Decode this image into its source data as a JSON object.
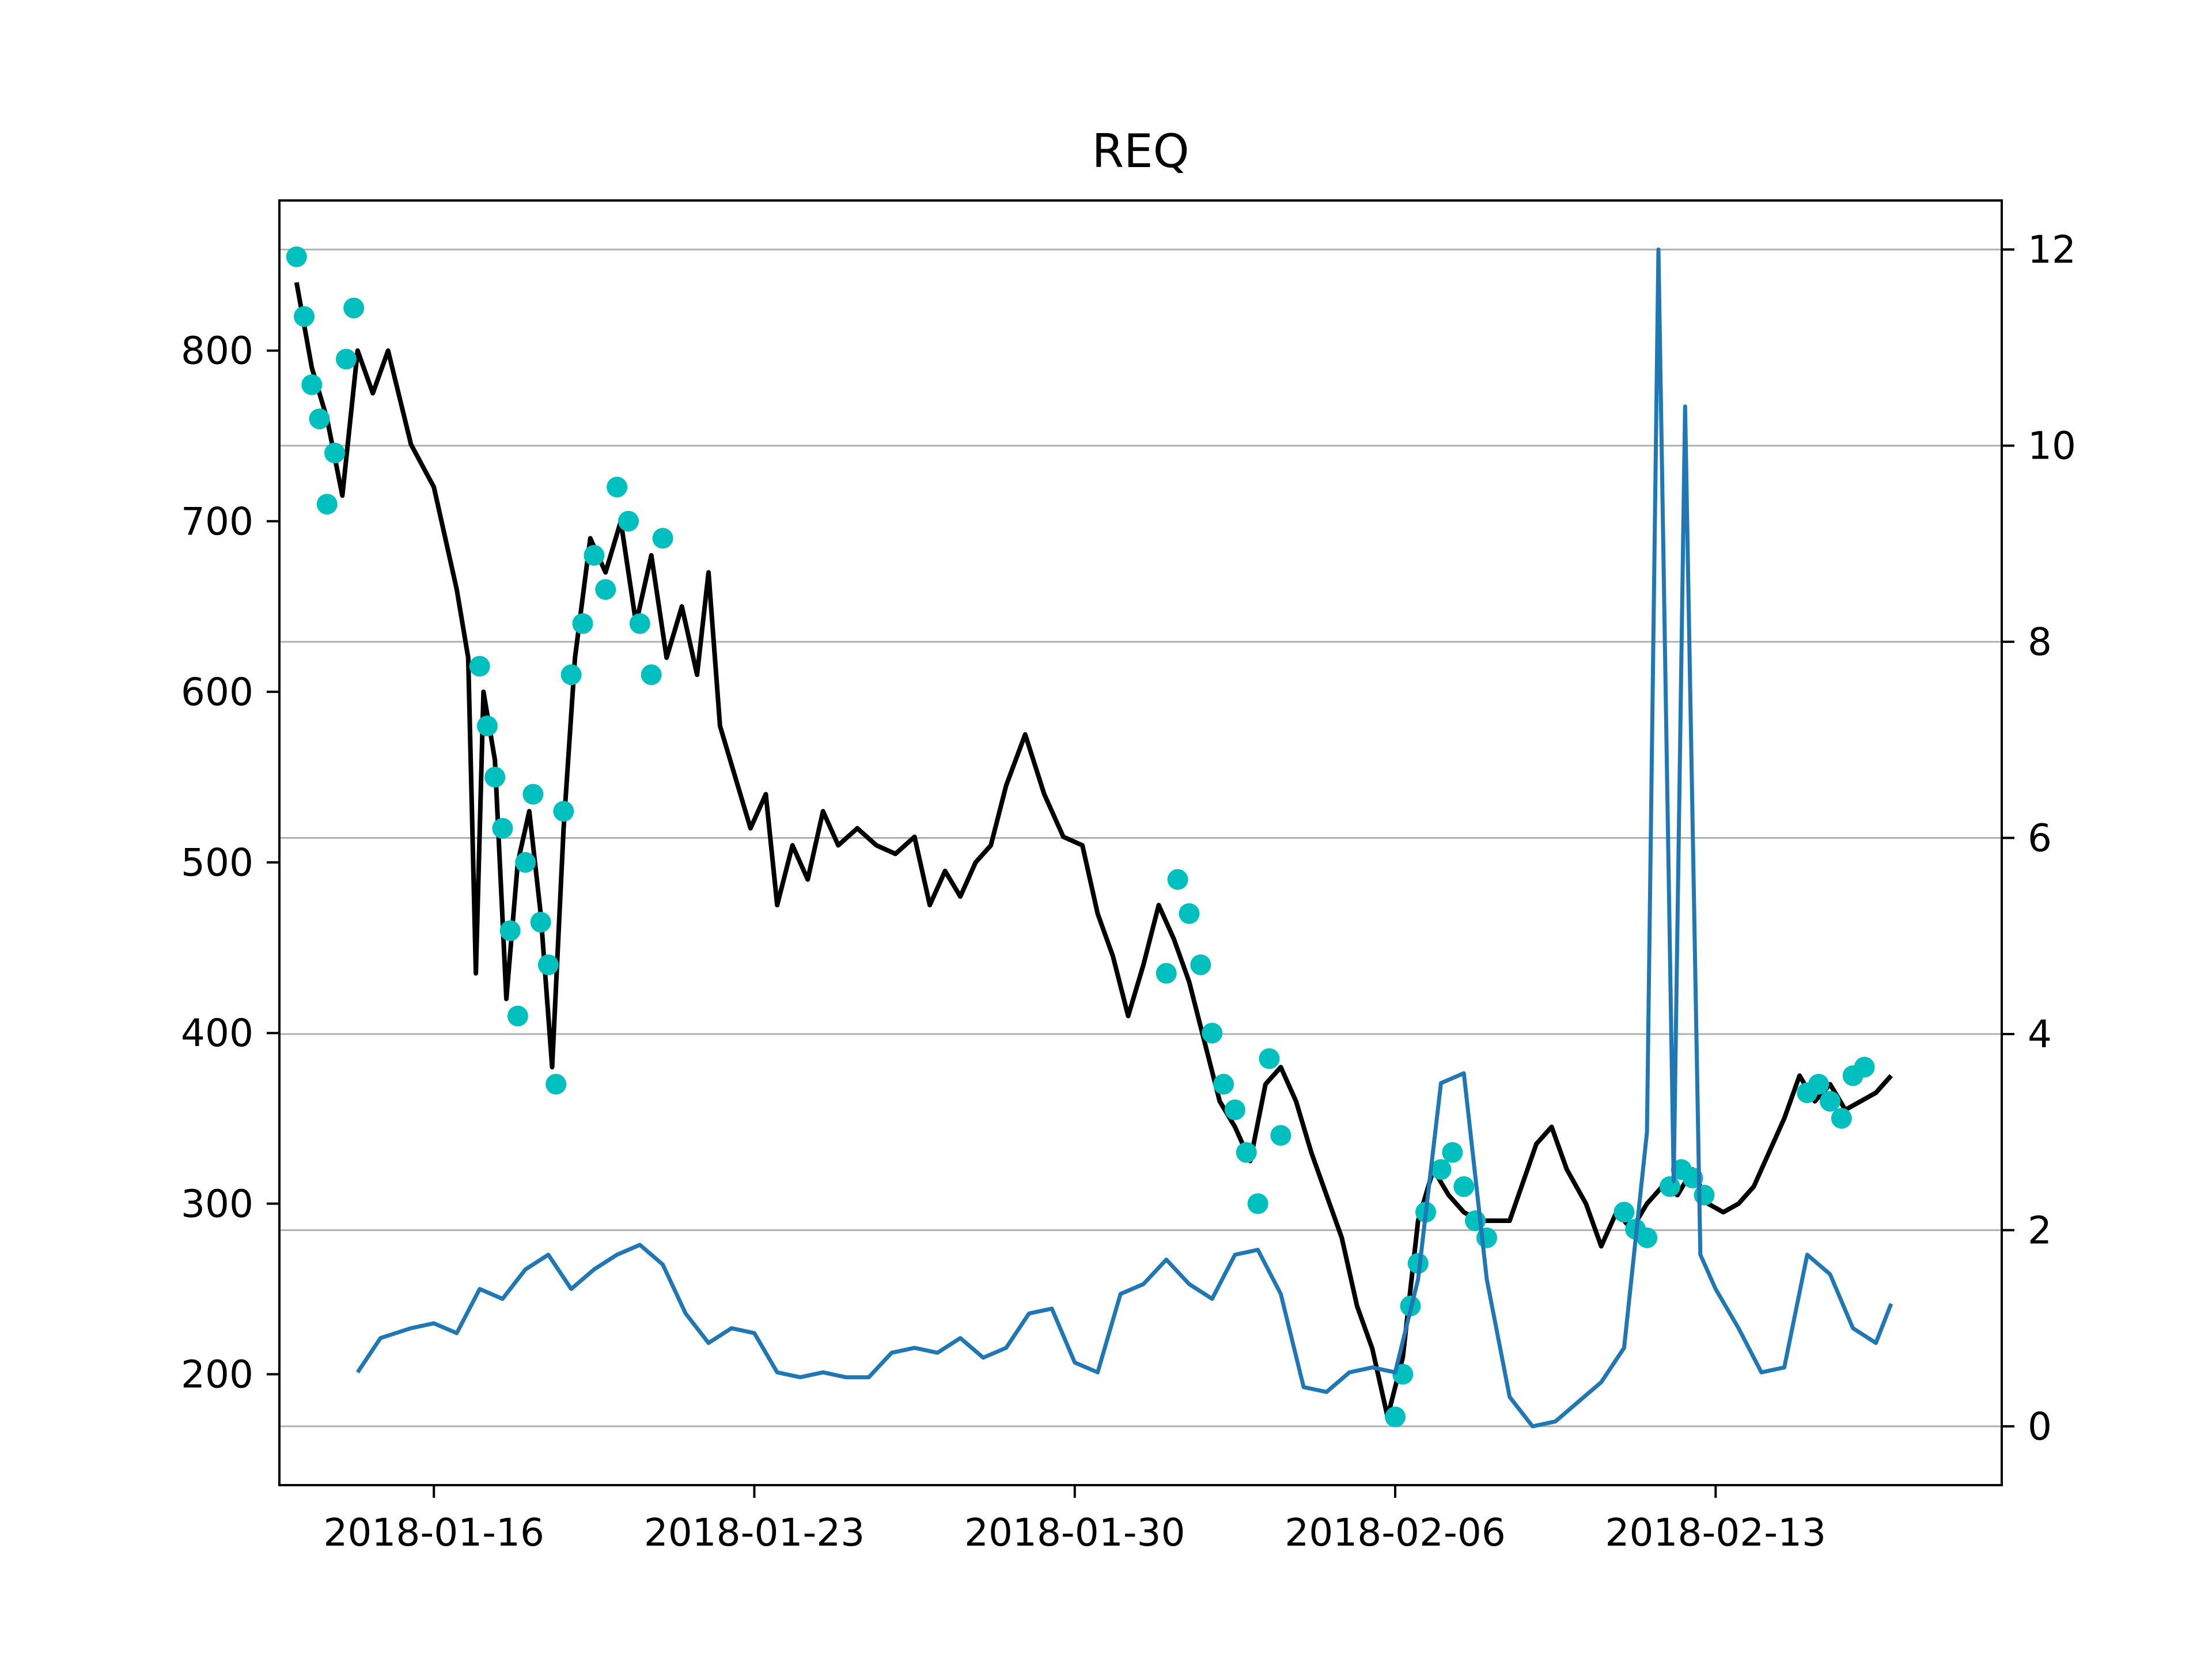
{
  "chart_data": {
    "type": "line",
    "title": "REQ",
    "xlabel": "",
    "ylabel": "",
    "y2label": "",
    "grid": "horizontal, right axis",
    "legend": "none",
    "x_ticks": [
      "2018-01-16",
      "2018-01-23",
      "2018-01-30",
      "2018-02-06",
      "2018-02-13"
    ],
    "y_ticks": [
      "200",
      "300",
      "400",
      "500",
      "600",
      "700",
      "800"
    ],
    "y2_ticks": [
      "0",
      "2",
      "4",
      "6",
      "8",
      "10",
      "12"
    ],
    "xlim": [
      "2018-01-12 15:00",
      "2018-02-19 06:00"
    ],
    "ylim": [
      135,
      888
    ],
    "y2lim": [
      -0.6,
      12.5
    ],
    "colors": {
      "price": "#000000",
      "markers": "#00bfbf",
      "indicator": "#1f77b4",
      "grid": "#b0b0b0"
    },
    "series": [
      {
        "axis": "left",
        "color": "#000000",
        "points": [
          [
            "2018-01-13 00:00",
            840
          ],
          [
            "2018-01-13 08:00",
            790
          ],
          [
            "2018-01-13 16:00",
            760
          ],
          [
            "2018-01-14 00:00",
            715
          ],
          [
            "2018-01-14 08:00",
            800
          ],
          [
            "2018-01-14 16:00",
            775
          ],
          [
            "2018-01-15 00:00",
            800
          ],
          [
            "2018-01-15 12:00",
            745
          ],
          [
            "2018-01-16 00:00",
            720
          ],
          [
            "2018-01-16 12:00",
            660
          ],
          [
            "2018-01-16 18:00",
            620
          ],
          [
            "2018-01-16 22:00",
            435
          ],
          [
            "2018-01-17 02:00",
            600
          ],
          [
            "2018-01-17 08:00",
            560
          ],
          [
            "2018-01-17 14:00",
            420
          ],
          [
            "2018-01-17 20:00",
            500
          ],
          [
            "2018-01-18 02:00",
            530
          ],
          [
            "2018-01-18 08:00",
            470
          ],
          [
            "2018-01-18 14:00",
            380
          ],
          [
            "2018-01-18 20:00",
            520
          ],
          [
            "2018-01-19 02:00",
            620
          ],
          [
            "2018-01-19 10:00",
            690
          ],
          [
            "2018-01-19 18:00",
            670
          ],
          [
            "2018-01-20 02:00",
            700
          ],
          [
            "2018-01-20 10:00",
            640
          ],
          [
            "2018-01-20 18:00",
            680
          ],
          [
            "2018-01-21 02:00",
            620
          ],
          [
            "2018-01-21 10:00",
            650
          ],
          [
            "2018-01-21 18:00",
            610
          ],
          [
            "2018-01-22 00:00",
            670
          ],
          [
            "2018-01-22 06:00",
            580
          ],
          [
            "2018-01-22 14:00",
            550
          ],
          [
            "2018-01-22 22:00",
            520
          ],
          [
            "2018-01-23 06:00",
            540
          ],
          [
            "2018-01-23 12:00",
            475
          ],
          [
            "2018-01-23 20:00",
            510
          ],
          [
            "2018-01-24 04:00",
            490
          ],
          [
            "2018-01-24 12:00",
            530
          ],
          [
            "2018-01-24 20:00",
            510
          ],
          [
            "2018-01-25 06:00",
            520
          ],
          [
            "2018-01-25 16:00",
            510
          ],
          [
            "2018-01-26 02:00",
            505
          ],
          [
            "2018-01-26 12:00",
            515
          ],
          [
            "2018-01-26 20:00",
            475
          ],
          [
            "2018-01-27 04:00",
            495
          ],
          [
            "2018-01-27 12:00",
            480
          ],
          [
            "2018-01-27 20:00",
            500
          ],
          [
            "2018-01-28 04:00",
            510
          ],
          [
            "2018-01-28 12:00",
            545
          ],
          [
            "2018-01-28 22:00",
            575
          ],
          [
            "2018-01-29 08:00",
            540
          ],
          [
            "2018-01-29 18:00",
            515
          ],
          [
            "2018-01-30 04:00",
            510
          ],
          [
            "2018-01-30 12:00",
            470
          ],
          [
            "2018-01-30 20:00",
            445
          ],
          [
            "2018-01-31 04:00",
            410
          ],
          [
            "2018-01-31 12:00",
            440
          ],
          [
            "2018-01-31 20:00",
            475
          ],
          [
            "2018-02-01 04:00",
            455
          ],
          [
            "2018-02-01 12:00",
            430
          ],
          [
            "2018-02-01 20:00",
            395
          ],
          [
            "2018-02-02 04:00",
            360
          ],
          [
            "2018-02-02 12:00",
            345
          ],
          [
            "2018-02-02 20:00",
            325
          ],
          [
            "2018-02-03 04:00",
            370
          ],
          [
            "2018-02-03 12:00",
            380
          ],
          [
            "2018-02-03 20:00",
            360
          ],
          [
            "2018-02-04 04:00",
            330
          ],
          [
            "2018-02-04 12:00",
            305
          ],
          [
            "2018-02-04 20:00",
            280
          ],
          [
            "2018-02-05 04:00",
            240
          ],
          [
            "2018-02-05 12:00",
            215
          ],
          [
            "2018-02-05 20:00",
            175
          ],
          [
            "2018-02-06 04:00",
            210
          ],
          [
            "2018-02-06 12:00",
            290
          ],
          [
            "2018-02-06 20:00",
            320
          ],
          [
            "2018-02-07 04:00",
            305
          ],
          [
            "2018-02-07 12:00",
            295
          ],
          [
            "2018-02-07 20:00",
            290
          ],
          [
            "2018-02-08 12:00",
            290
          ],
          [
            "2018-02-09 02:00",
            335
          ],
          [
            "2018-02-09 10:00",
            345
          ],
          [
            "2018-02-09 18:00",
            320
          ],
          [
            "2018-02-10 04:00",
            300
          ],
          [
            "2018-02-10 12:00",
            275
          ],
          [
            "2018-02-10 20:00",
            295
          ],
          [
            "2018-02-11 04:00",
            285
          ],
          [
            "2018-02-11 12:00",
            300
          ],
          [
            "2018-02-11 20:00",
            310
          ],
          [
            "2018-02-12 04:00",
            305
          ],
          [
            "2018-02-12 12:00",
            320
          ],
          [
            "2018-02-12 20:00",
            300
          ],
          [
            "2018-02-13 04:00",
            295
          ],
          [
            "2018-02-13 12:00",
            300
          ],
          [
            "2018-02-13 20:00",
            310
          ],
          [
            "2018-02-14 04:00",
            330
          ],
          [
            "2018-02-14 12:00",
            350
          ],
          [
            "2018-02-14 20:00",
            375
          ],
          [
            "2018-02-15 04:00",
            360
          ],
          [
            "2018-02-15 12:00",
            370
          ],
          [
            "2018-02-15 20:00",
            355
          ],
          [
            "2018-02-16 04:00",
            360
          ],
          [
            "2018-02-16 12:00",
            365
          ],
          [
            "2018-02-16 20:00",
            375
          ]
        ]
      },
      {
        "axis": "left",
        "color": "#00bfbf",
        "style": "markers",
        "points": [
          [
            "2018-01-13 00:00",
            855
          ],
          [
            "2018-01-13 04:00",
            820
          ],
          [
            "2018-01-13 08:00",
            780
          ],
          [
            "2018-01-13 12:00",
            760
          ],
          [
            "2018-01-13 16:00",
            710
          ],
          [
            "2018-01-13 20:00",
            740
          ],
          [
            "2018-01-14 02:00",
            795
          ],
          [
            "2018-01-14 06:00",
            825
          ],
          [
            "2018-01-17 00:00",
            615
          ],
          [
            "2018-01-17 04:00",
            580
          ],
          [
            "2018-01-17 08:00",
            550
          ],
          [
            "2018-01-17 12:00",
            520
          ],
          [
            "2018-01-17 16:00",
            460
          ],
          [
            "2018-01-17 20:00",
            410
          ],
          [
            "2018-01-18 00:00",
            500
          ],
          [
            "2018-01-18 04:00",
            540
          ],
          [
            "2018-01-18 08:00",
            465
          ],
          [
            "2018-01-18 12:00",
            440
          ],
          [
            "2018-01-18 16:00",
            370
          ],
          [
            "2018-01-18 20:00",
            530
          ],
          [
            "2018-01-19 00:00",
            610
          ],
          [
            "2018-01-19 06:00",
            640
          ],
          [
            "2018-01-19 12:00",
            680
          ],
          [
            "2018-01-19 18:00",
            660
          ],
          [
            "2018-01-20 00:00",
            720
          ],
          [
            "2018-01-20 06:00",
            700
          ],
          [
            "2018-01-20 12:00",
            640
          ],
          [
            "2018-01-20 18:00",
            610
          ],
          [
            "2018-01-21 00:00",
            690
          ],
          [
            "2018-02-01 00:00",
            435
          ],
          [
            "2018-02-01 06:00",
            490
          ],
          [
            "2018-02-01 12:00",
            470
          ],
          [
            "2018-02-01 18:00",
            440
          ],
          [
            "2018-02-02 00:00",
            400
          ],
          [
            "2018-02-02 06:00",
            370
          ],
          [
            "2018-02-02 12:00",
            355
          ],
          [
            "2018-02-02 18:00",
            330
          ],
          [
            "2018-02-03 00:00",
            300
          ],
          [
            "2018-02-03 06:00",
            385
          ],
          [
            "2018-02-03 12:00",
            340
          ],
          [
            "2018-02-06 00:00",
            175
          ],
          [
            "2018-02-06 04:00",
            200
          ],
          [
            "2018-02-06 08:00",
            240
          ],
          [
            "2018-02-06 12:00",
            265
          ],
          [
            "2018-02-06 16:00",
            295
          ],
          [
            "2018-02-07 00:00",
            320
          ],
          [
            "2018-02-07 06:00",
            330
          ],
          [
            "2018-02-07 12:00",
            310
          ],
          [
            "2018-02-07 18:00",
            290
          ],
          [
            "2018-02-08 00:00",
            280
          ],
          [
            "2018-02-11 00:00",
            295
          ],
          [
            "2018-02-11 06:00",
            285
          ],
          [
            "2018-02-11 12:00",
            280
          ],
          [
            "2018-02-12 00:00",
            310
          ],
          [
            "2018-02-12 06:00",
            320
          ],
          [
            "2018-02-12 12:00",
            315
          ],
          [
            "2018-02-12 18:00",
            305
          ],
          [
            "2018-02-15 00:00",
            365
          ],
          [
            "2018-02-15 06:00",
            370
          ],
          [
            "2018-02-15 12:00",
            360
          ],
          [
            "2018-02-15 18:00",
            350
          ],
          [
            "2018-02-16 00:00",
            375
          ],
          [
            "2018-02-16 06:00",
            380
          ]
        ]
      },
      {
        "axis": "right",
        "color": "#1f77b4",
        "points": [
          [
            "2018-01-14 08:00",
            0.55
          ],
          [
            "2018-01-14 20:00",
            0.9
          ],
          [
            "2018-01-15 12:00",
            1.0
          ],
          [
            "2018-01-16 00:00",
            1.05
          ],
          [
            "2018-01-16 12:00",
            0.95
          ],
          [
            "2018-01-17 00:00",
            1.4
          ],
          [
            "2018-01-17 12:00",
            1.3
          ],
          [
            "2018-01-18 00:00",
            1.6
          ],
          [
            "2018-01-18 12:00",
            1.75
          ],
          [
            "2018-01-19 00:00",
            1.4
          ],
          [
            "2018-01-19 12:00",
            1.6
          ],
          [
            "2018-01-20 00:00",
            1.75
          ],
          [
            "2018-01-20 12:00",
            1.85
          ],
          [
            "2018-01-21 00:00",
            1.65
          ],
          [
            "2018-01-21 12:00",
            1.15
          ],
          [
            "2018-01-22 00:00",
            0.85
          ],
          [
            "2018-01-22 12:00",
            1.0
          ],
          [
            "2018-01-23 00:00",
            0.95
          ],
          [
            "2018-01-23 12:00",
            0.55
          ],
          [
            "2018-01-24 00:00",
            0.5
          ],
          [
            "2018-01-24 12:00",
            0.55
          ],
          [
            "2018-01-25 00:00",
            0.5
          ],
          [
            "2018-01-25 12:00",
            0.5
          ],
          [
            "2018-01-26 00:00",
            0.75
          ],
          [
            "2018-01-26 12:00",
            0.8
          ],
          [
            "2018-01-27 00:00",
            0.75
          ],
          [
            "2018-01-27 12:00",
            0.9
          ],
          [
            "2018-01-28 00:00",
            0.7
          ],
          [
            "2018-01-28 12:00",
            0.8
          ],
          [
            "2018-01-29 00:00",
            1.15
          ],
          [
            "2018-01-29 12:00",
            1.2
          ],
          [
            "2018-01-30 00:00",
            0.65
          ],
          [
            "2018-01-30 12:00",
            0.55
          ],
          [
            "2018-01-31 00:00",
            1.35
          ],
          [
            "2018-01-31 12:00",
            1.45
          ],
          [
            "2018-02-01 00:00",
            1.7
          ],
          [
            "2018-02-01 12:00",
            1.45
          ],
          [
            "2018-02-02 00:00",
            1.3
          ],
          [
            "2018-02-02 12:00",
            1.75
          ],
          [
            "2018-02-03 00:00",
            1.8
          ],
          [
            "2018-02-03 12:00",
            1.35
          ],
          [
            "2018-02-04 00:00",
            0.4
          ],
          [
            "2018-02-04 12:00",
            0.35
          ],
          [
            "2018-02-05 00:00",
            0.55
          ],
          [
            "2018-02-05 12:00",
            0.6
          ],
          [
            "2018-02-06 00:00",
            0.55
          ],
          [
            "2018-02-06 12:00",
            1.5
          ],
          [
            "2018-02-07 00:00",
            3.5
          ],
          [
            "2018-02-07 12:00",
            3.6
          ],
          [
            "2018-02-08 00:00",
            1.5
          ],
          [
            "2018-02-08 12:00",
            0.3
          ],
          [
            "2018-02-09 00:00",
            0.0
          ],
          [
            "2018-02-09 12:00",
            0.05
          ],
          [
            "2018-02-10 00:00",
            0.25
          ],
          [
            "2018-02-10 12:00",
            0.45
          ],
          [
            "2018-02-11 00:00",
            0.8
          ],
          [
            "2018-02-11 12:00",
            3.0
          ],
          [
            "2018-02-11 18:00",
            12.0
          ],
          [
            "2018-02-12 02:00",
            2.5
          ],
          [
            "2018-02-12 08:00",
            10.4
          ],
          [
            "2018-02-12 16:00",
            1.75
          ],
          [
            "2018-02-13 00:00",
            1.4
          ],
          [
            "2018-02-13 12:00",
            1.0
          ],
          [
            "2018-02-14 00:00",
            0.55
          ],
          [
            "2018-02-14 12:00",
            0.6
          ],
          [
            "2018-02-15 00:00",
            1.75
          ],
          [
            "2018-02-15 12:00",
            1.55
          ],
          [
            "2018-02-16 00:00",
            1.0
          ],
          [
            "2018-02-16 12:00",
            0.85
          ],
          [
            "2018-02-16 20:00",
            1.25
          ]
        ]
      }
    ]
  }
}
